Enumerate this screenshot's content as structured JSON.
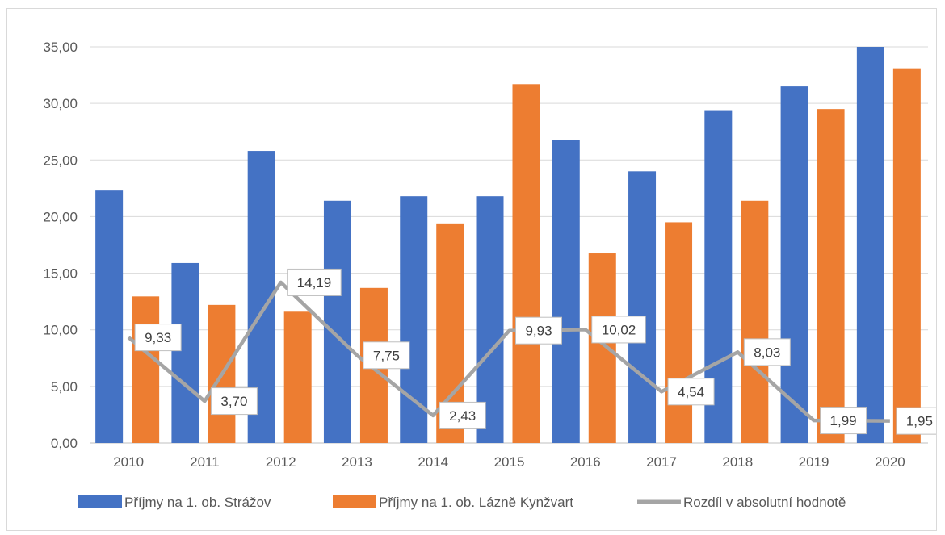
{
  "chart_data": {
    "type": "bar",
    "categories": [
      "2010",
      "2011",
      "2012",
      "2013",
      "2014",
      "2015",
      "2016",
      "2017",
      "2018",
      "2019",
      "2020"
    ],
    "series": [
      {
        "name": "Příjmy na 1. ob. Strážov",
        "kind": "bar",
        "color": "#4472C4",
        "values": [
          22.3,
          15.9,
          25.8,
          21.4,
          21.8,
          21.8,
          26.8,
          24.0,
          29.4,
          31.5,
          35.0
        ]
      },
      {
        "name": "Příjmy na 1. ob. Lázně Kynžvart",
        "kind": "bar",
        "color": "#ED7D31",
        "values": [
          12.95,
          12.2,
          11.6,
          13.7,
          19.4,
          31.7,
          16.75,
          19.5,
          21.4,
          29.5,
          33.1
        ]
      },
      {
        "name": "Rozdíl v absolutní hodnotě",
        "kind": "line",
        "color": "#A5A5A5",
        "values": [
          9.33,
          3.7,
          14.19,
          7.75,
          2.43,
          9.93,
          10.02,
          4.54,
          8.03,
          1.99,
          1.95
        ],
        "labels": [
          "9,33",
          "3,70",
          "14,19",
          "7,75",
          "2,43",
          "9,93",
          "10,02",
          "4,54",
          "8,03",
          "1,99",
          "1,95"
        ]
      }
    ],
    "yticks": [
      "0,00",
      "5,00",
      "10,00",
      "15,00",
      "20,00",
      "25,00",
      "30,00",
      "35,00"
    ],
    "ylim": [
      0,
      35
    ],
    "title": "",
    "xlabel": "",
    "ylabel": "",
    "grid": true,
    "legend_position": "bottom"
  }
}
